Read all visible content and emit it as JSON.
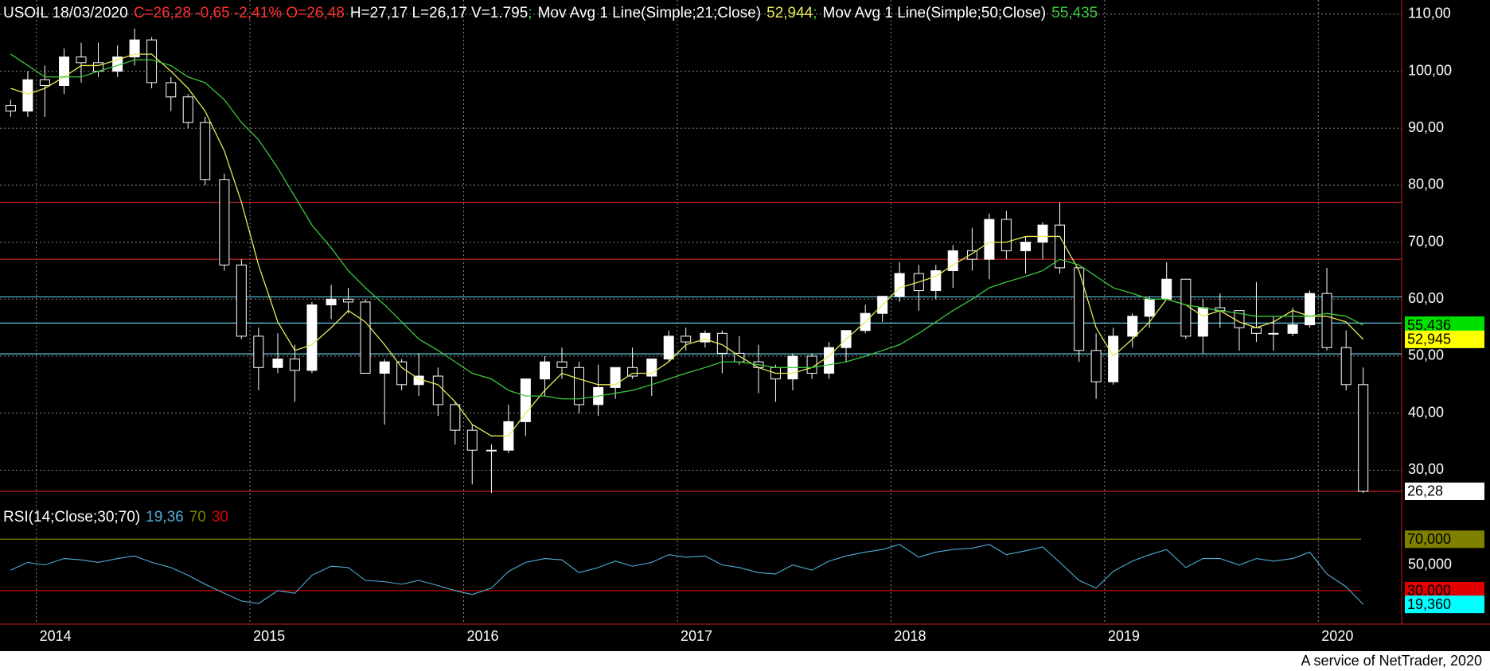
{
  "chart_data": {
    "type": "candlestick",
    "title": "USOIL 18/03/2020",
    "quote": "C=26,28 -0,65 -2,41% O=26,48",
    "stats": "H=27,17 L=26,17 V=1.795",
    "separator": ";",
    "footer": "A service of NetTrader, 2020",
    "up_color": "#ffffff",
    "down_color": "#000000",
    "wick_color": "#ffffff",
    "quote_color": "#ff3030",
    "text_color": "#ffffff",
    "sep_color": "#30d030",
    "x": [
      2013.88,
      2013.96,
      2014.04,
      2014.13,
      2014.21,
      2014.29,
      2014.38,
      2014.46,
      2014.54,
      2014.63,
      2014.71,
      2014.79,
      2014.88,
      2014.96,
      2015.04,
      2015.13,
      2015.21,
      2015.29,
      2015.38,
      2015.46,
      2015.54,
      2015.63,
      2015.71,
      2015.79,
      2015.88,
      2015.96,
      2016.04,
      2016.13,
      2016.21,
      2016.29,
      2016.38,
      2016.46,
      2016.54,
      2016.63,
      2016.71,
      2016.79,
      2016.88,
      2016.96,
      2017.04,
      2017.13,
      2017.21,
      2017.29,
      2017.38,
      2017.46,
      2017.54,
      2017.63,
      2017.71,
      2017.79,
      2017.88,
      2017.96,
      2018.04,
      2018.13,
      2018.21,
      2018.29,
      2018.38,
      2018.46,
      2018.54,
      2018.63,
      2018.71,
      2018.79,
      2018.88,
      2018.96,
      2019.04,
      2019.13,
      2019.21,
      2019.29,
      2019.38,
      2019.46,
      2019.54,
      2019.63,
      2019.71,
      2019.79,
      2019.88,
      2019.96,
      2020.04,
      2020.13,
      2020.21
    ],
    "open": [
      94,
      93,
      98.5,
      97.5,
      102.5,
      101.5,
      100,
      102.5,
      105.5,
      98,
      95.5,
      91,
      81,
      66,
      53.5,
      48,
      49.5,
      47.5,
      59,
      60,
      59.5,
      47,
      49,
      45,
      46.5,
      41.5,
      37,
      33.5,
      33.5,
      38.5,
      46,
      49,
      48,
      41.5,
      44.5,
      48,
      46.5,
      49.5,
      53.5,
      52.5,
      54,
      50.5,
      49,
      48,
      46,
      50,
      47,
      51.5,
      54.5,
      57.5,
      60.5,
      64.5,
      61.5,
      65,
      68.5,
      67,
      74,
      68.5,
      70,
      73,
      65.5,
      51,
      45.5,
      53.5,
      57,
      60,
      63.5,
      53.5,
      58.5,
      58,
      55,
      54,
      54,
      55.5,
      61,
      51.5,
      45
    ],
    "high": [
      95,
      100,
      101,
      104,
      105,
      105,
      104.5,
      107.5,
      106,
      99,
      96,
      92,
      82,
      67,
      55,
      54,
      52,
      59.5,
      62.5,
      62,
      60,
      49.5,
      49.5,
      50.5,
      48,
      42,
      38,
      34.5,
      41.5,
      46,
      50,
      51.5,
      49,
      48.5,
      48,
      51.5,
      49.5,
      54.5,
      55,
      54.5,
      54.5,
      53.5,
      52,
      48.5,
      50.5,
      50.5,
      52.5,
      54.5,
      59,
      60.5,
      66.5,
      66,
      66,
      69.5,
      72.5,
      75,
      75.5,
      71,
      73.5,
      77,
      65.5,
      54,
      55,
      57.5,
      60.5,
      66.5,
      63.5,
      60,
      61,
      58,
      63,
      57,
      58.5,
      61.5,
      65.5,
      54.5,
      48
    ],
    "low": [
      92,
      92,
      92,
      96,
      98,
      99,
      99,
      101,
      97,
      93,
      90,
      80,
      65,
      53,
      44,
      47,
      42,
      47,
      56.5,
      57.5,
      47,
      38,
      44,
      43,
      39.5,
      34.5,
      27.5,
      26,
      33,
      36,
      43,
      46,
      40,
      39.5,
      42.5,
      46,
      43,
      49,
      51,
      51.5,
      47,
      48.5,
      43.5,
      42,
      44,
      46,
      46,
      49,
      54,
      56,
      59.5,
      58,
      60,
      62,
      65,
      63.5,
      67,
      64.5,
      67,
      64.5,
      49,
      42.5,
      45,
      51.5,
      55,
      60,
      53,
      50.5,
      55,
      51,
      52.5,
      51,
      53.5,
      55,
      51,
      44,
      26
    ],
    "close": [
      93,
      98.5,
      97.5,
      102.5,
      101.5,
      100,
      102.5,
      105.5,
      98,
      95.5,
      91,
      81,
      66,
      53.5,
      48,
      49.5,
      47.5,
      59,
      60,
      59.5,
      47,
      49,
      45,
      46.5,
      41.5,
      37,
      33.5,
      33.5,
      38.5,
      46,
      49,
      48,
      41.5,
      44.5,
      48,
      46.5,
      49.5,
      53.5,
      52.5,
      54,
      50.5,
      49,
      48,
      46,
      50,
      47,
      51.5,
      54.5,
      57.5,
      60.5,
      64.5,
      61.5,
      65,
      68.5,
      67,
      74,
      68.5,
      70,
      73,
      65.5,
      51,
      45.5,
      53.5,
      57,
      60,
      63.5,
      53.5,
      58.5,
      58,
      55,
      54,
      54,
      55.5,
      61,
      51.5,
      45,
      26.28
    ],
    "xlim": [
      2013.83,
      2020.39
    ],
    "xticks": [
      2014,
      2015,
      2016,
      2017,
      2018,
      2019,
      2020
    ],
    "ylim": [
      26,
      112.5
    ],
    "yticks": [
      {
        "value": 30,
        "label": "30,00"
      },
      {
        "value": 40,
        "label": "40,00"
      },
      {
        "value": 50,
        "label": "50,00"
      },
      {
        "value": 60,
        "label": "60,00"
      },
      {
        "value": 70,
        "label": "70,00"
      },
      {
        "value": 80,
        "label": "80,00"
      },
      {
        "value": 90,
        "label": "90,00"
      },
      {
        "value": 100,
        "label": "100,00"
      },
      {
        "value": 110,
        "label": "110,00"
      }
    ],
    "grid": true,
    "series": [
      {
        "name": "Mov Avg 1 Line(Simple;21;Close)",
        "color": "#e8e85a",
        "value_label": "52,944",
        "values": [
          97,
          96,
          97,
          99,
          101,
          101,
          102,
          103,
          103,
          100,
          97,
          93,
          86,
          77,
          66,
          56,
          51,
          52,
          55,
          58,
          56,
          52,
          48,
          46,
          45,
          42,
          38,
          36,
          36,
          40,
          44,
          47,
          46,
          45,
          45,
          47,
          47,
          49,
          52,
          53,
          52,
          50,
          48,
          47,
          47,
          48,
          50,
          53,
          56,
          59,
          62,
          63,
          64,
          66,
          68,
          70,
          70,
          71,
          71,
          71,
          65,
          55,
          50,
          53,
          56,
          60,
          59,
          57,
          58,
          56,
          55,
          56,
          58,
          57,
          57,
          56,
          52.944
        ]
      },
      {
        "name": "Mov Avg 1 Line(Simple;50;Close)",
        "color": "#3cc83c",
        "value_label": "55,435",
        "values": [
          103,
          101,
          99,
          99,
          99,
          100,
          101,
          102,
          102,
          101,
          99,
          98,
          95,
          91,
          88,
          83,
          78,
          73,
          69,
          65,
          62,
          59,
          56,
          53,
          51,
          49,
          47,
          46,
          44,
          43,
          43,
          42.5,
          42.5,
          43,
          43.5,
          44,
          45,
          46,
          47,
          48,
          49,
          49,
          48.5,
          48,
          48,
          48,
          48.5,
          49,
          50,
          51,
          52,
          54,
          56,
          58,
          60,
          62,
          63,
          64,
          65,
          67,
          66,
          64,
          62,
          61,
          60,
          60,
          59,
          58.5,
          58,
          57.5,
          57,
          57,
          57,
          57,
          57.5,
          57,
          55.435
        ]
      }
    ],
    "levels": [
      {
        "value": 77,
        "color": "#c02020"
      },
      {
        "value": 67,
        "color": "#c02020"
      },
      {
        "value": 60.4,
        "color": "#60c8e0"
      },
      {
        "value": 55.8,
        "color": "#60c8e0"
      },
      {
        "value": 50.4,
        "color": "#60c8e0"
      },
      {
        "value": 26.28,
        "color": "#c02020"
      }
    ],
    "markers": [
      {
        "value": 55.436,
        "label": "55,436",
        "color": "#00e000"
      },
      {
        "value": 52.945,
        "label": "52,945",
        "color": "#ffff00"
      },
      {
        "value": 26.28,
        "label": "26,28",
        "color": "#ffffff"
      }
    ],
    "rsi": {
      "name": "RSI(14;Close;30;70)",
      "value_label": "19,36",
      "color": "#4fb0d8",
      "values": [
        46,
        52,
        50,
        55,
        54,
        52,
        55,
        57,
        52,
        48,
        42,
        35,
        28,
        22,
        20,
        30,
        28,
        42,
        49,
        48,
        38,
        37,
        35,
        38,
        34,
        30,
        27,
        32,
        45,
        52,
        55,
        54,
        44,
        48,
        53,
        49,
        52,
        58,
        56,
        57,
        50,
        48,
        44,
        43,
        50,
        46,
        53,
        57,
        60,
        62,
        66,
        56,
        60,
        62,
        63,
        66,
        58,
        61,
        64,
        52,
        38,
        32,
        45,
        53,
        58,
        62,
        48,
        55,
        55,
        50,
        55,
        53,
        55,
        60,
        43,
        33,
        19.36
      ],
      "ylim": [
        4,
        98
      ],
      "yticks": [
        {
          "value": 50,
          "label": "50,000"
        }
      ],
      "levels": [
        {
          "value": 70,
          "label": "70,000",
          "legend": "70",
          "color": "#808000"
        },
        {
          "value": 30,
          "label": "30,000",
          "legend": "30",
          "color": "#e00000"
        }
      ],
      "marker": {
        "value": 19.36,
        "label": "19,360",
        "color": "#00ffff"
      }
    }
  }
}
